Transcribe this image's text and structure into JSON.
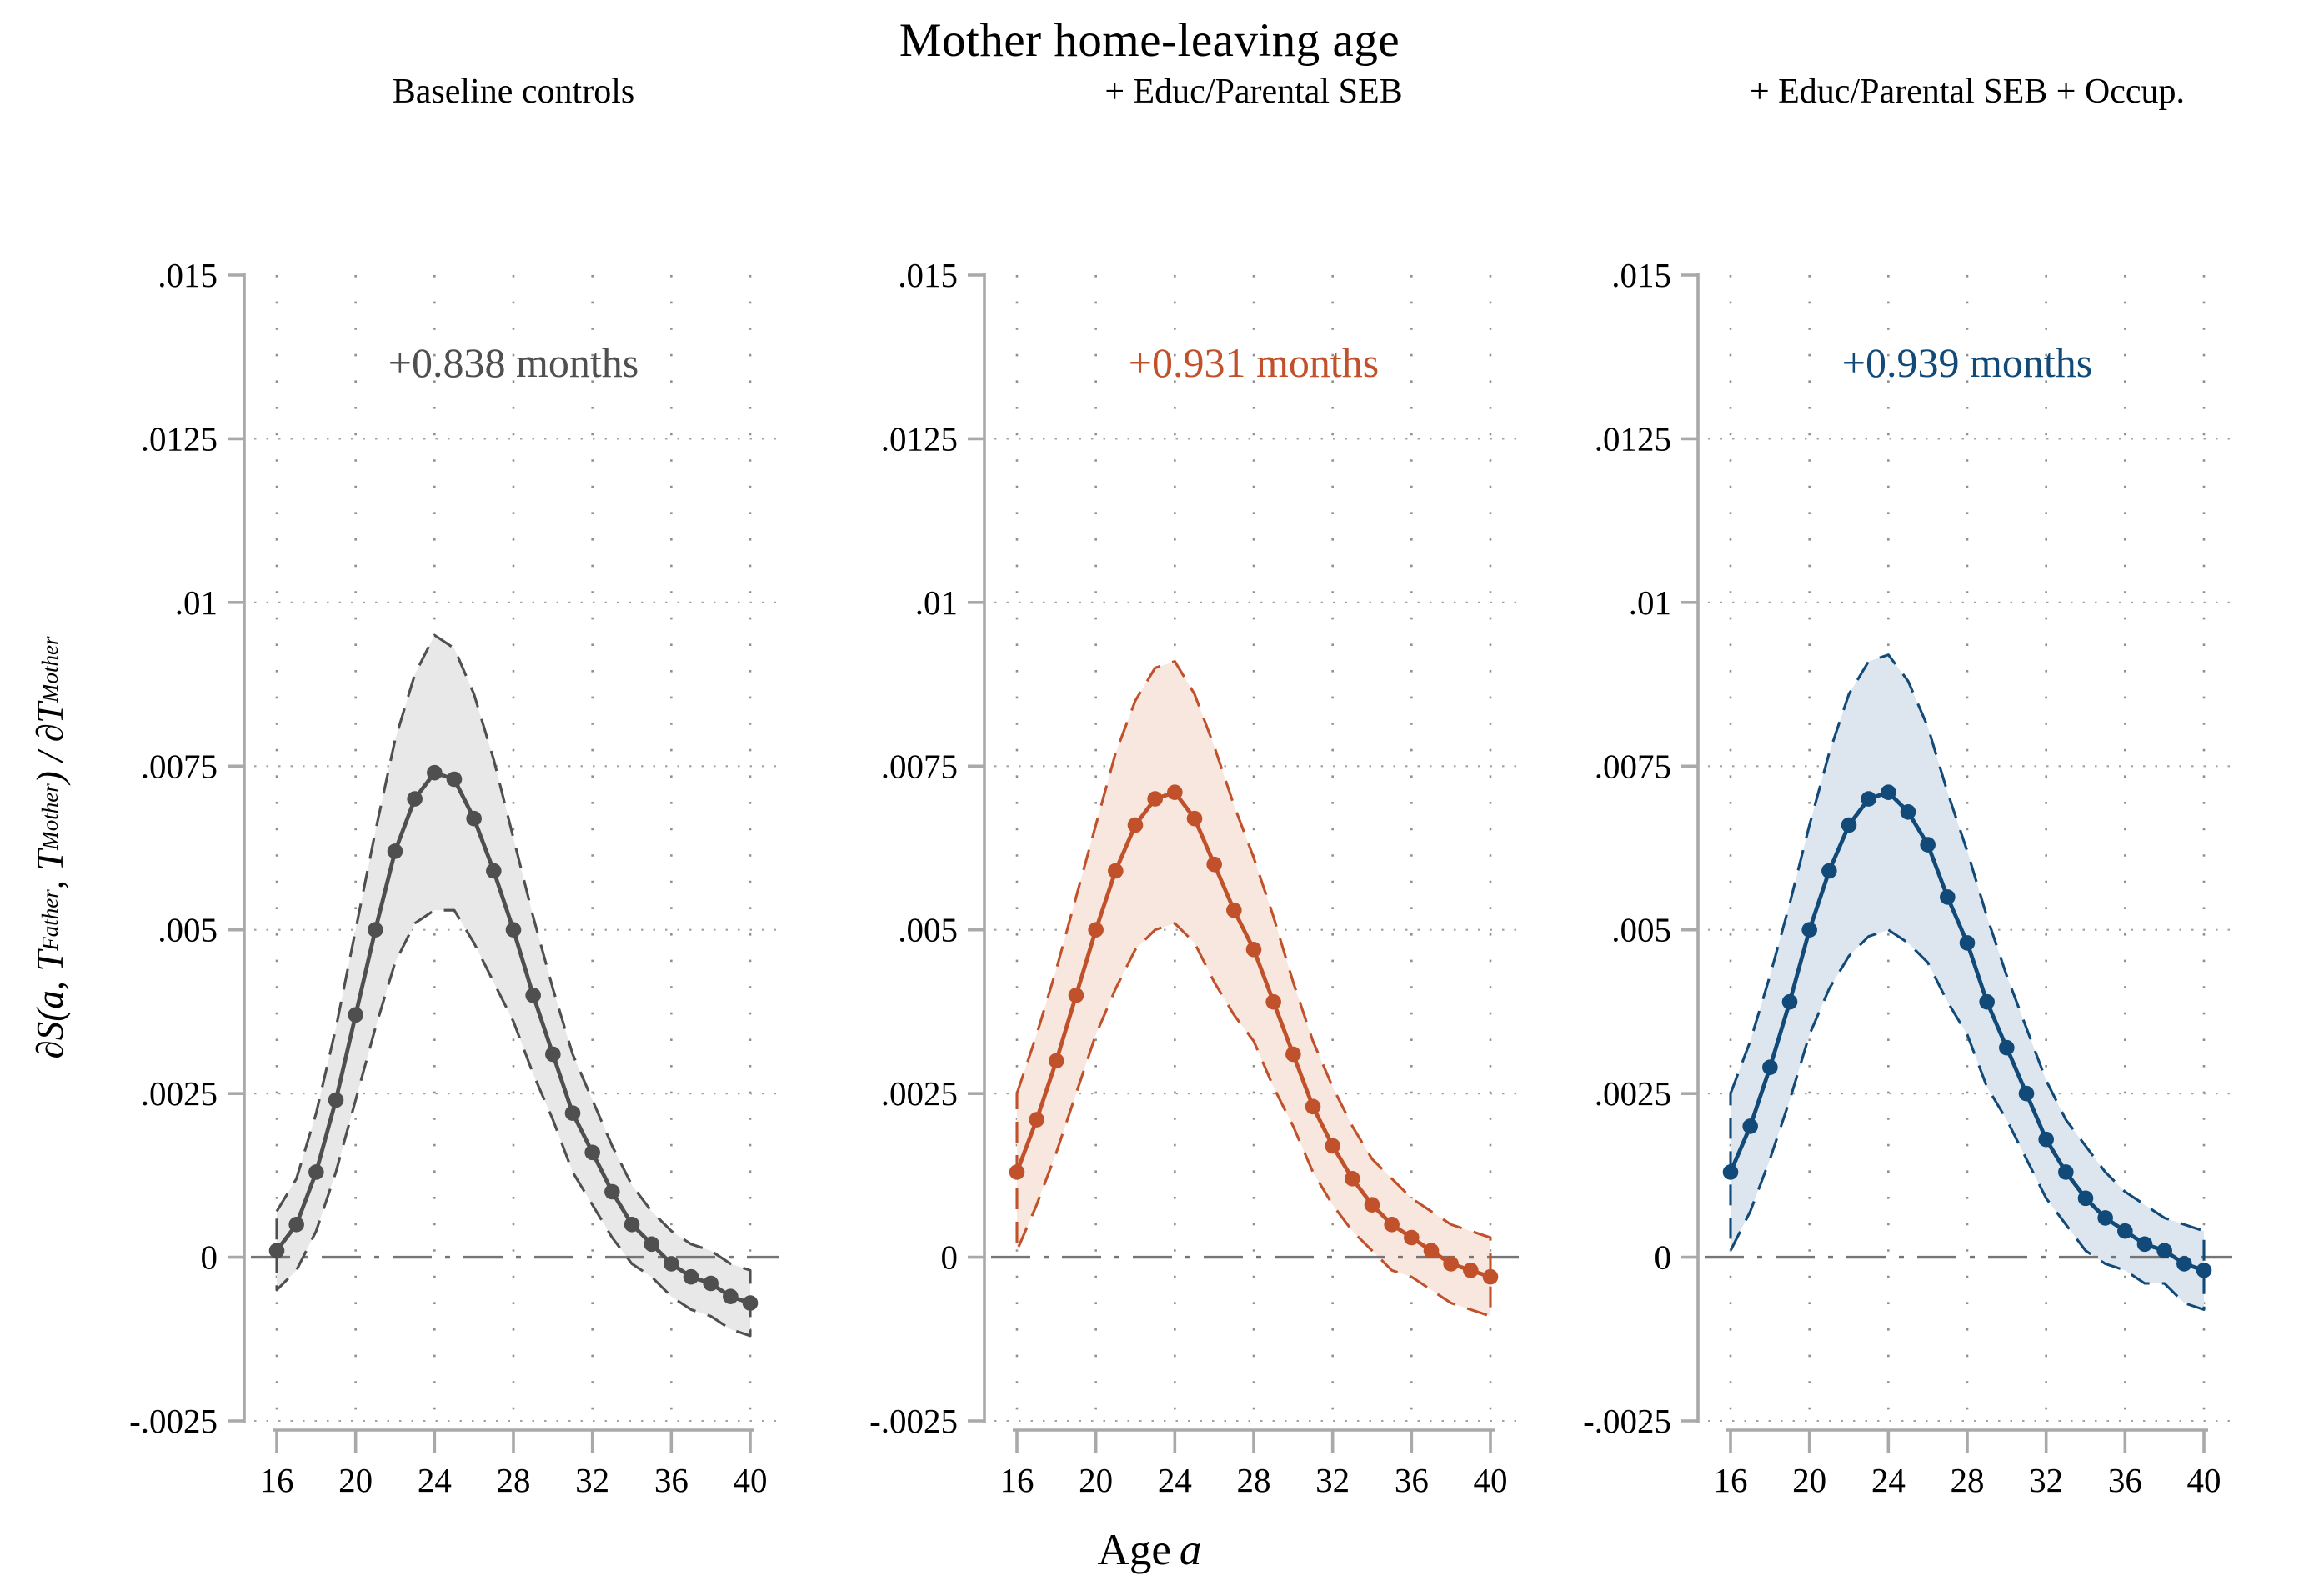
{
  "figure": {
    "title": "Mother home-leaving age",
    "xlabel_main": "Age",
    "xlabel_var": "a",
    "ylabel": "∂S(a, T_Father, T_Mother) / ∂T_Mother",
    "ylabel_parts": [
      {
        "text": "∂S(a, T",
        "sub": false
      },
      {
        "text": "Father",
        "sub": true
      },
      {
        "text": ", T",
        "sub": false
      },
      {
        "text": "Mother",
        "sub": true
      },
      {
        "text": ") / ∂T",
        "sub": false
      },
      {
        "text": "Mother",
        "sub": true
      }
    ],
    "background": "#ffffff"
  },
  "axes": {
    "xticks": [
      16,
      20,
      24,
      28,
      32,
      36,
      40
    ],
    "yticks": [
      {
        "label": ".015",
        "value": 0.015,
        "grid": false
      },
      {
        "label": ".0125",
        "value": 0.0125,
        "grid": true
      },
      {
        "label": ".01",
        "value": 0.01,
        "grid": true
      },
      {
        "label": ".0075",
        "value": 0.0075,
        "grid": true
      },
      {
        "label": ".005",
        "value": 0.005,
        "grid": true
      },
      {
        "label": ".0025",
        "value": 0.0025,
        "grid": true
      },
      {
        "label": "0",
        "value": 0,
        "grid": false
      },
      {
        "label": "-.0025",
        "value": -0.0025,
        "grid": true
      }
    ],
    "xlim": [
      16,
      40
    ],
    "ylim": [
      -0.0025,
      0.015
    ],
    "zero_line": true,
    "grid_style": "dotted"
  },
  "chart_data": [
    {
      "type": "line",
      "title": "Baseline controls",
      "annotation": "+0.838 months",
      "color": "#4f4f4f",
      "band_fill": "#e8e8e8",
      "xlabel": "Age a",
      "ylim": [
        -0.0025,
        0.015
      ],
      "x": [
        16,
        17,
        18,
        19,
        20,
        21,
        22,
        23,
        24,
        25,
        26,
        27,
        28,
        29,
        30,
        31,
        32,
        33,
        34,
        35,
        36,
        37,
        38,
        39,
        40
      ],
      "series": [
        {
          "name": "estimate",
          "values": [
            0.0001,
            0.0005,
            0.0013,
            0.0024,
            0.0037,
            0.005,
            0.0062,
            0.007,
            0.0074,
            0.0073,
            0.0067,
            0.0059,
            0.005,
            0.004,
            0.0031,
            0.0022,
            0.0016,
            0.001,
            0.0005,
            0.0002,
            -0.0001,
            -0.0003,
            -0.0004,
            -0.0006,
            -0.0007
          ]
        },
        {
          "name": "ci_upper",
          "values": [
            0.0007,
            0.0012,
            0.0022,
            0.0035,
            0.005,
            0.0065,
            0.0079,
            0.0089,
            0.0095,
            0.0093,
            0.0086,
            0.0076,
            0.0064,
            0.0052,
            0.0041,
            0.0031,
            0.0024,
            0.0017,
            0.0011,
            0.0007,
            0.0004,
            0.0002,
            0.0001,
            -0.0001,
            -0.0002
          ]
        },
        {
          "name": "ci_lower",
          "values": [
            -0.0005,
            -0.0002,
            0.0004,
            0.0013,
            0.0024,
            0.0035,
            0.0045,
            0.0051,
            0.0053,
            0.0053,
            0.0048,
            0.0042,
            0.0036,
            0.0028,
            0.0021,
            0.0013,
            0.0008,
            0.0003,
            -0.0001,
            -0.0003,
            -0.0006,
            -0.0008,
            -0.0009,
            -0.0011,
            -0.0012
          ]
        }
      ]
    },
    {
      "type": "line",
      "title": "+ Educ/Parental SEB",
      "annotation": "+0.931 months",
      "color": "#c0512b",
      "band_fill": "#f8e7de",
      "xlabel": "Age a",
      "ylim": [
        -0.0025,
        0.015
      ],
      "x": [
        16,
        17,
        18,
        19,
        20,
        21,
        22,
        23,
        24,
        25,
        26,
        27,
        28,
        29,
        30,
        31,
        32,
        33,
        34,
        35,
        36,
        37,
        38,
        39,
        40
      ],
      "series": [
        {
          "name": "estimate",
          "values": [
            0.0013,
            0.0021,
            0.003,
            0.004,
            0.005,
            0.0059,
            0.0066,
            0.007,
            0.0071,
            0.0067,
            0.006,
            0.0053,
            0.0047,
            0.0039,
            0.0031,
            0.0023,
            0.0017,
            0.0012,
            0.0008,
            0.0005,
            0.0003,
            0.0001,
            -0.0001,
            -0.0002,
            -0.0003
          ]
        },
        {
          "name": "ci_upper",
          "values": [
            0.0025,
            0.0034,
            0.0044,
            0.0055,
            0.0066,
            0.0077,
            0.0085,
            0.009,
            0.0091,
            0.0086,
            0.0078,
            0.0069,
            0.0061,
            0.0052,
            0.0042,
            0.0033,
            0.0026,
            0.002,
            0.0015,
            0.0012,
            0.0009,
            0.0007,
            0.0005,
            0.0004,
            0.0003
          ]
        },
        {
          "name": "ci_lower",
          "values": [
            0.0001,
            0.0008,
            0.0016,
            0.0025,
            0.0034,
            0.0041,
            0.0047,
            0.005,
            0.0051,
            0.0048,
            0.0042,
            0.0037,
            0.0033,
            0.0026,
            0.002,
            0.0013,
            0.0008,
            0.0004,
            0.0001,
            -0.0002,
            -0.0003,
            -0.0005,
            -0.0007,
            -0.0008,
            -0.0009
          ]
        }
      ]
    },
    {
      "type": "line",
      "title": "+ Educ/Parental SEB + Occup.",
      "annotation": "+0.939 months",
      "color": "#114a78",
      "band_fill": "#dde6ef",
      "xlabel": "Age a",
      "ylim": [
        -0.0025,
        0.015
      ],
      "x": [
        16,
        17,
        18,
        19,
        20,
        21,
        22,
        23,
        24,
        25,
        26,
        27,
        28,
        29,
        30,
        31,
        32,
        33,
        34,
        35,
        36,
        37,
        38,
        39,
        40
      ],
      "series": [
        {
          "name": "estimate",
          "values": [
            0.0013,
            0.002,
            0.0029,
            0.0039,
            0.005,
            0.0059,
            0.0066,
            0.007,
            0.0071,
            0.0068,
            0.0063,
            0.0055,
            0.0048,
            0.0039,
            0.0032,
            0.0025,
            0.0018,
            0.0013,
            0.0009,
            0.0006,
            0.0004,
            0.0002,
            0.0001,
            -0.0001,
            -0.0002
          ]
        },
        {
          "name": "ci_upper",
          "values": [
            0.0025,
            0.0033,
            0.0043,
            0.0054,
            0.0066,
            0.0077,
            0.0086,
            0.0091,
            0.0092,
            0.0088,
            0.0081,
            0.0071,
            0.0062,
            0.0052,
            0.0043,
            0.0035,
            0.0027,
            0.0021,
            0.0017,
            0.0013,
            0.001,
            0.0008,
            0.0006,
            0.0005,
            0.0004
          ]
        },
        {
          "name": "ci_lower",
          "values": [
            0.0001,
            0.0007,
            0.0015,
            0.0024,
            0.0034,
            0.0041,
            0.0046,
            0.0049,
            0.005,
            0.0048,
            0.0045,
            0.0039,
            0.0034,
            0.0026,
            0.0021,
            0.0015,
            0.0009,
            0.0005,
            0.0001,
            -0.0001,
            -0.0002,
            -0.0004,
            -0.0004,
            -0.0007,
            -0.0008
          ]
        }
      ]
    }
  ]
}
